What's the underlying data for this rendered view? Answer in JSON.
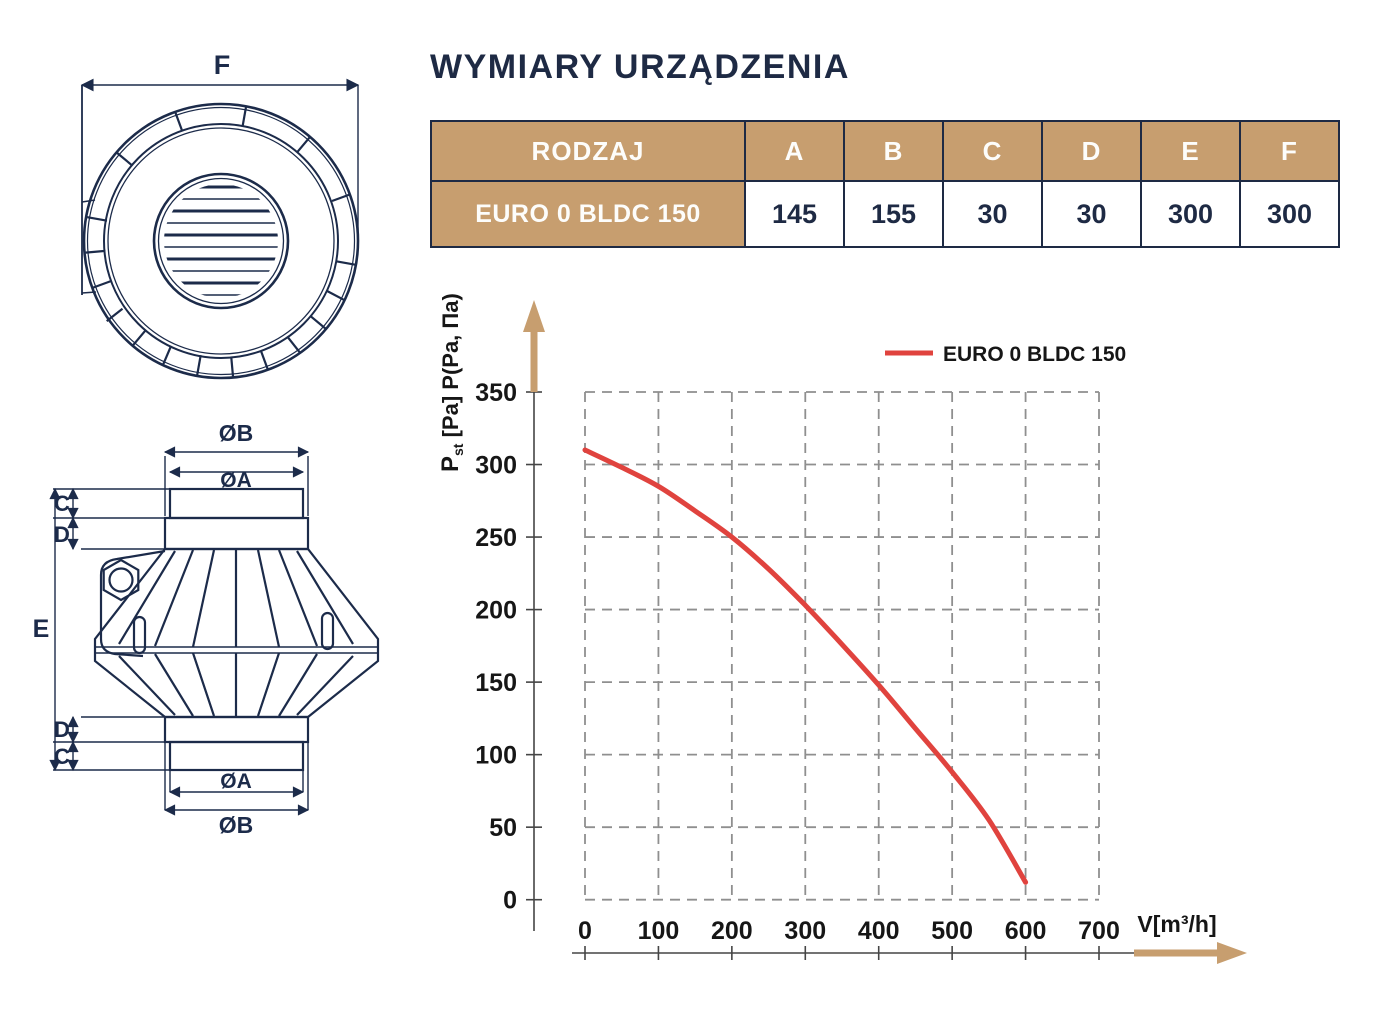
{
  "page": {
    "title": "WYMIARY URZĄDZENIA"
  },
  "colors": {
    "navy": "#1c2b4a",
    "gold": "#c79e6f",
    "red": "#e0433e",
    "grid": "#8f8f8f",
    "axis": "#454545",
    "ink": "#161616"
  },
  "drawings": {
    "front_view": {
      "dim_f": "F"
    },
    "side_view": {
      "dim_phi_b": "ØB",
      "dim_phi_a": "ØA",
      "dim_c": "C",
      "dim_d": "D",
      "dim_e": "E"
    }
  },
  "table": {
    "headers": [
      "RODZAJ",
      "A",
      "B",
      "C",
      "D",
      "E",
      "F"
    ],
    "rows": [
      {
        "name": "EURO 0 BLDC 150",
        "values": [
          "145",
          "155",
          "30",
          "30",
          "300",
          "300"
        ]
      }
    ]
  },
  "chart_data": {
    "type": "line",
    "title": "",
    "xlabel": "V[m³/h]",
    "ylabel": "Pst [Pa] P(Pa, Па)",
    "ylabel_parts": {
      "p": "P",
      "sub": "st",
      "rest1": " [Pa] ",
      "rest2": "P(Pa, Па)"
    },
    "legend_position": "top-right-inside",
    "grid": "dashed",
    "xlim": [
      0,
      700
    ],
    "ylim": [
      0,
      350
    ],
    "xticks": [
      0,
      100,
      200,
      300,
      400,
      500,
      600,
      700
    ],
    "yticks": [
      0,
      50,
      100,
      150,
      200,
      250,
      300,
      350
    ],
    "x": [
      0,
      50,
      100,
      150,
      200,
      250,
      300,
      350,
      400,
      450,
      500,
      550,
      600
    ],
    "series": [
      {
        "name": "EURO 0 BLDC 150",
        "color": "#e0433e",
        "values": [
          310,
          298,
          285,
          268,
          250,
          228,
          203,
          176,
          148,
          118,
          88,
          55,
          12
        ]
      }
    ]
  }
}
